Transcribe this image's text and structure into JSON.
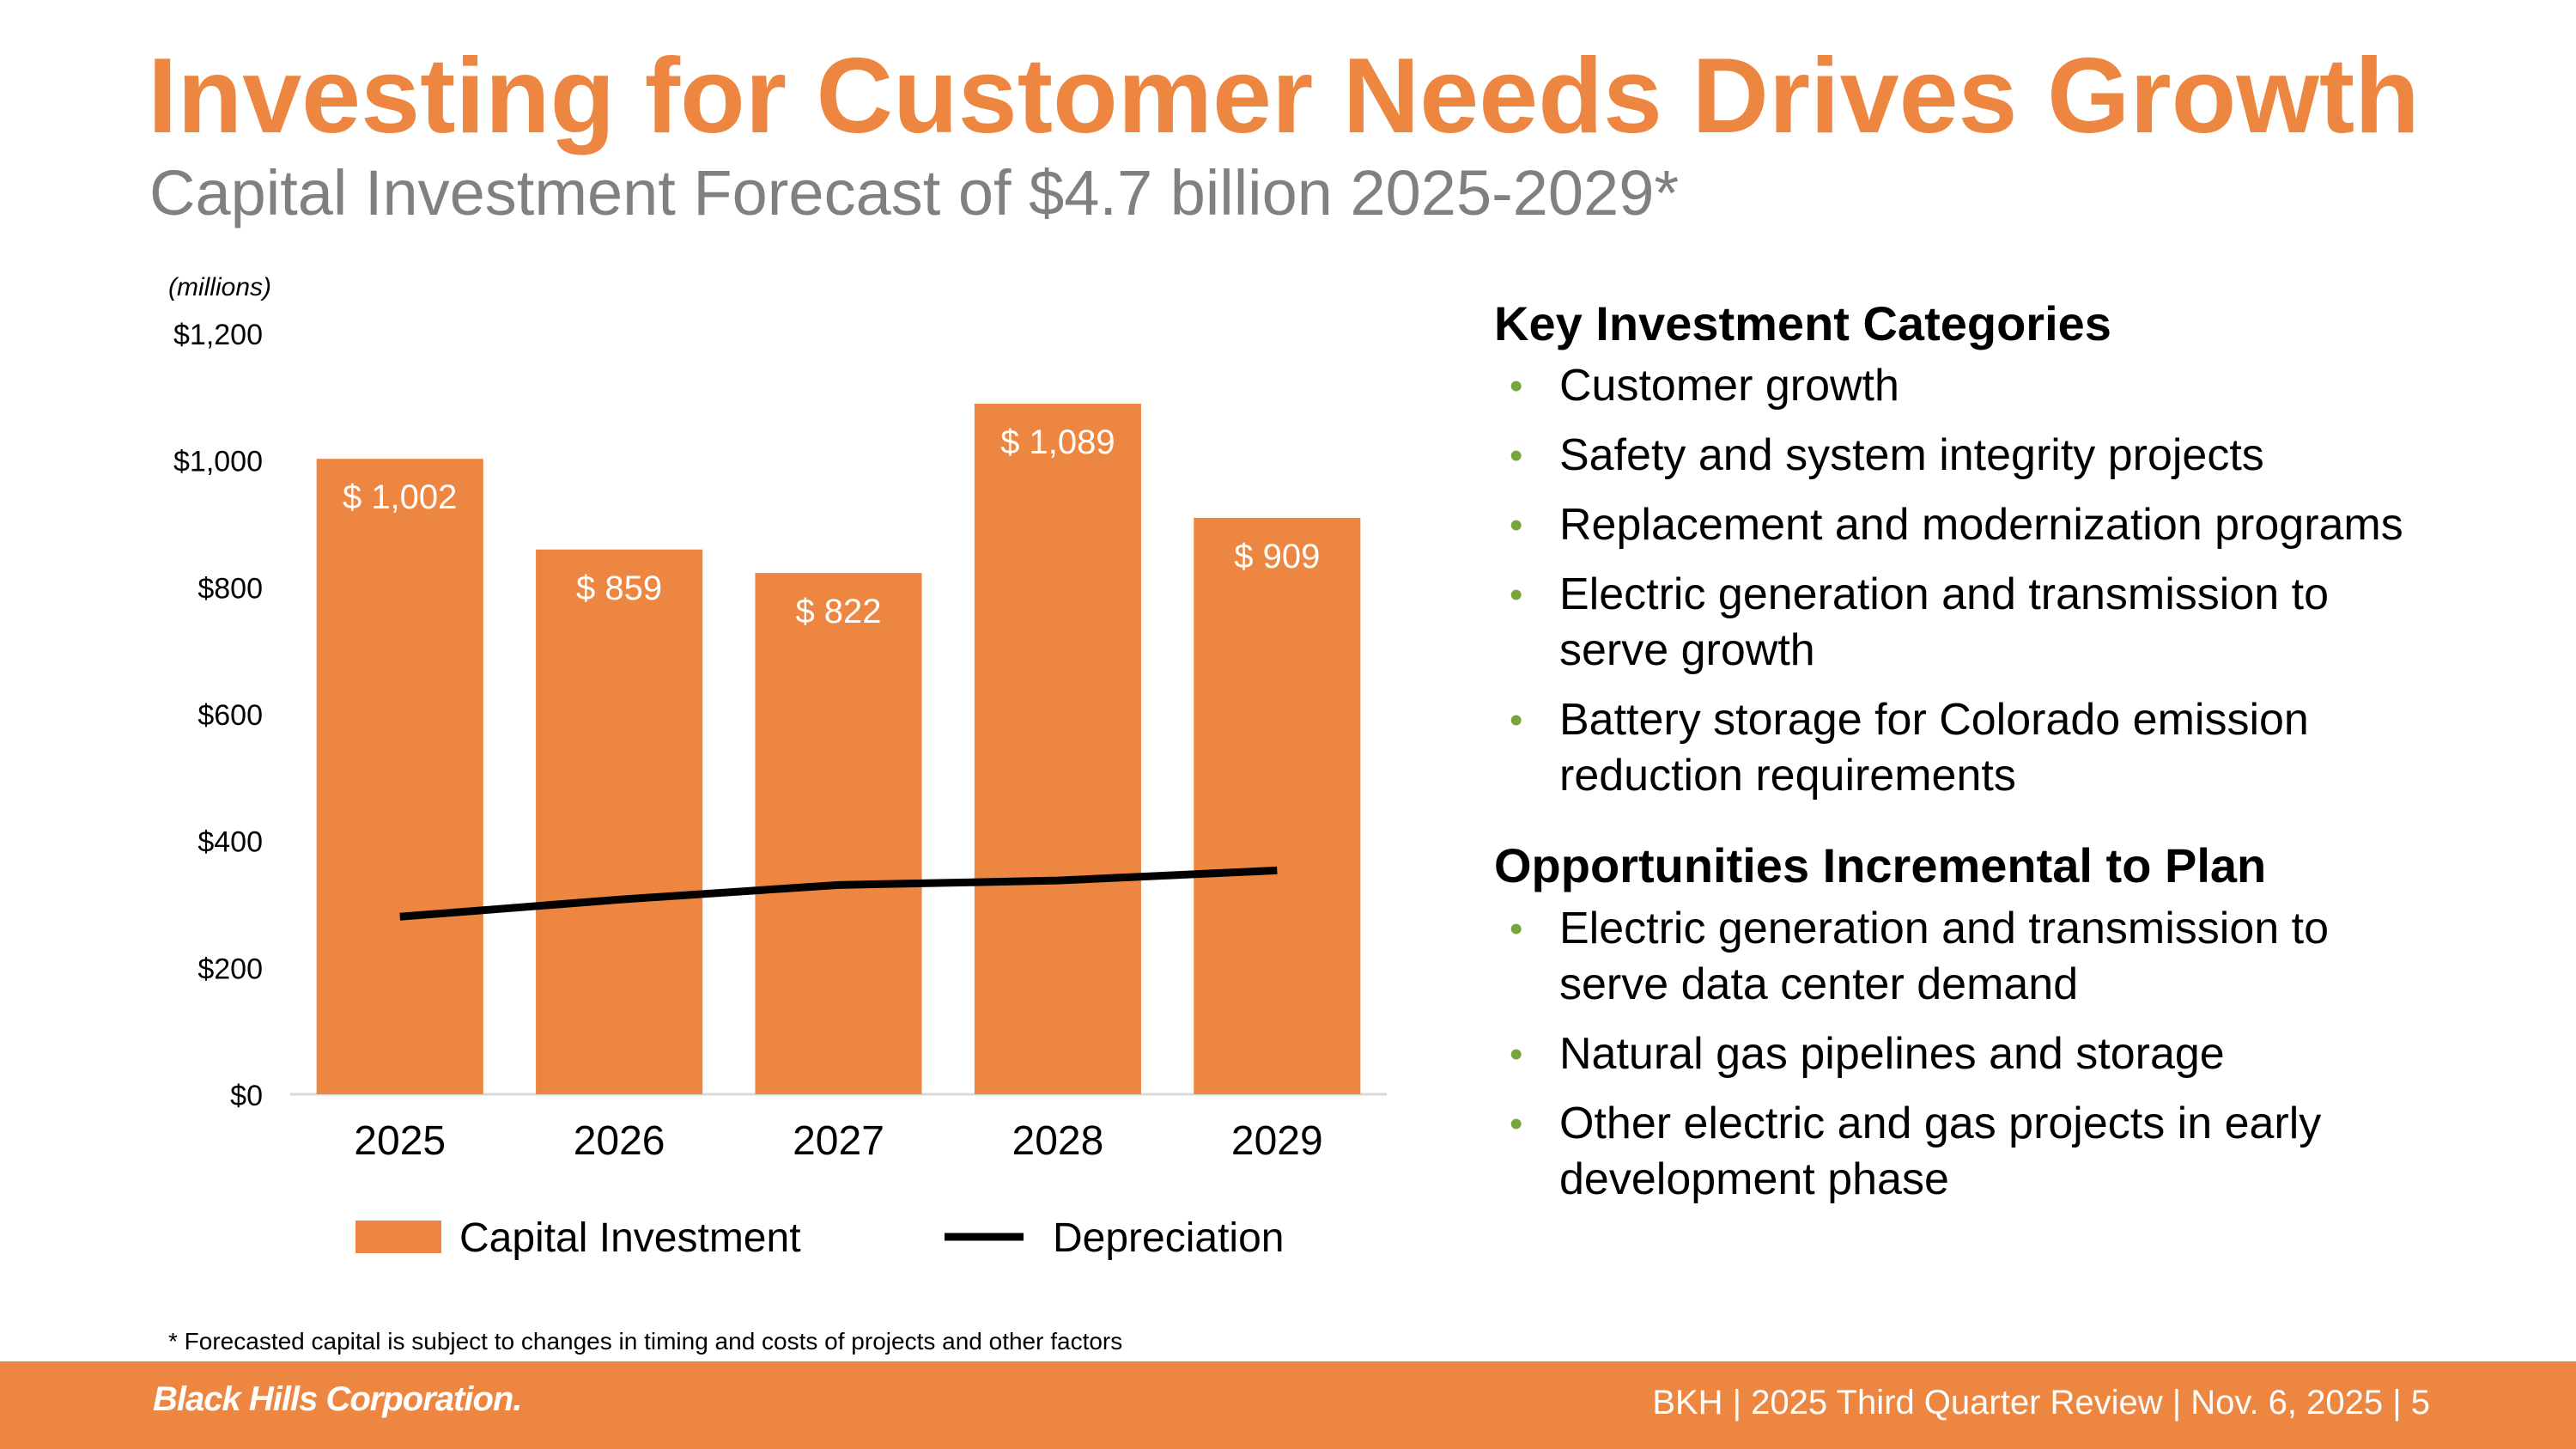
{
  "header": {
    "title": "Investing for Customer Needs Drives Growth",
    "subtitle": "Capital Investment Forecast of $4.7 billion 2025-2029*"
  },
  "chart_data": {
    "type": "bar",
    "units_label": "(millions)",
    "categories": [
      "2025",
      "2026",
      "2027",
      "2028",
      "2029"
    ],
    "series": [
      {
        "name": "Capital Investment",
        "type": "bar",
        "color": "#ED8640",
        "values": [
          1002,
          859,
          822,
          1089,
          909
        ],
        "labels": [
          "$ 1,002",
          "$ 859",
          "$ 822",
          "$ 1,089",
          "$ 909"
        ]
      },
      {
        "name": "Depreciation",
        "type": "line",
        "color": "#000000",
        "values": [
          280,
          307,
          330,
          337,
          353
        ]
      }
    ],
    "ylim": [
      0,
      1200
    ],
    "yticks": [
      0,
      200,
      400,
      600,
      800,
      1000,
      1200
    ],
    "ytick_labels": [
      "$0",
      "$200",
      "$400",
      "$600",
      "$800",
      "$1,000",
      "$1,200"
    ],
    "legend_position": "bottom",
    "grid": false
  },
  "right_panel": {
    "key_title": "Key Investment Categories",
    "key_items": [
      {
        "lines": [
          "Customer growth"
        ]
      },
      {
        "lines": [
          "Safety and system integrity projects"
        ]
      },
      {
        "lines": [
          "Replacement and modernization programs"
        ]
      },
      {
        "lines": [
          "Electric generation and transmission to",
          "serve growth"
        ]
      },
      {
        "lines": [
          "Battery storage for Colorado emission",
          "reduction requirements"
        ]
      }
    ],
    "opp_title": "Opportunities Incremental to Plan",
    "opp_items": [
      {
        "lines": [
          "Electric generation and transmission to",
          "serve data center demand"
        ]
      },
      {
        "lines": [
          "Natural gas pipelines and storage"
        ]
      },
      {
        "lines": [
          "Other electric and gas projects in early",
          "development phase"
        ]
      }
    ],
    "bullet_char": "•",
    "bullet_color": "#77A43B"
  },
  "footnote": "* Forecasted capital is subject to changes in timing and costs of projects and other factors",
  "footer": {
    "logo": "Black Hills Corporation.",
    "info": "BKH  |  2025 Third Quarter Review  |  Nov. 6, 2025  |  5"
  },
  "colors": {
    "accent": "#ED8640",
    "subtitle_gray": "#808080",
    "bullet_green": "#77A43B"
  }
}
